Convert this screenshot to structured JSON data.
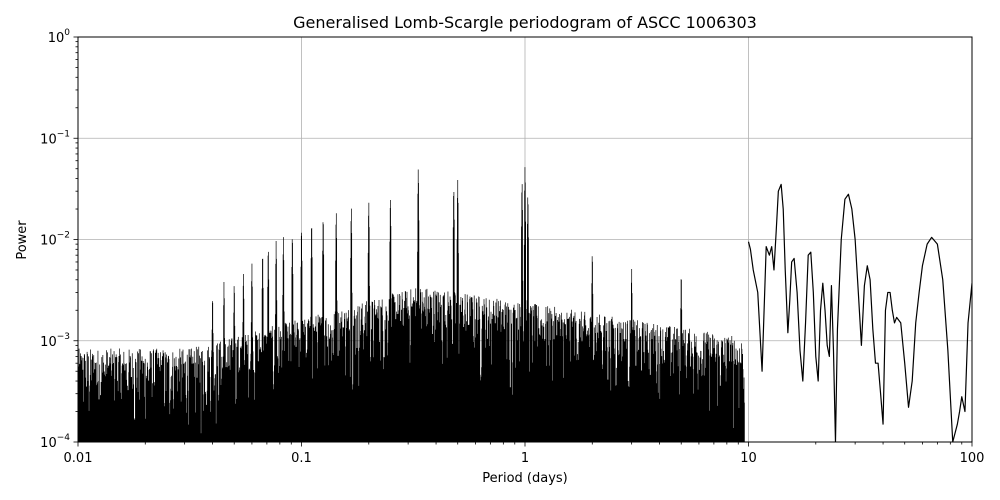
{
  "chart_data": {
    "type": "line",
    "title": "Generalised Lomb-Scargle periodogram of ASCC 1006303",
    "xlabel": "Period (days)",
    "ylabel": "Power",
    "xscale": "log",
    "yscale": "log",
    "xlim": [
      0.01,
      100
    ],
    "ylim": [
      0.0001,
      1
    ],
    "grid": true,
    "x_ticks": [
      {
        "value": 0.01,
        "label": "0.01"
      },
      {
        "value": 0.1,
        "label": "0.1"
      },
      {
        "value": 1,
        "label": "1"
      },
      {
        "value": 10,
        "label": "10"
      },
      {
        "value": 100,
        "label": "100"
      }
    ],
    "y_ticks": [
      {
        "value": 0.0001,
        "mantissa": "10",
        "exponent": "−4"
      },
      {
        "value": 0.001,
        "mantissa": "10",
        "exponent": "−3"
      },
      {
        "value": 0.01,
        "mantissa": "10",
        "exponent": "−2"
      },
      {
        "value": 0.1,
        "mantissa": "10",
        "exponent": "−1"
      },
      {
        "value": 1,
        "mantissa": "10",
        "exponent": "0"
      }
    ],
    "series": [
      {
        "color": "#000000",
        "x": [
          10.0,
          10.2,
          10.5,
          11.0,
          11.5,
          12.0,
          12.4,
          12.7,
          13.0,
          13.3,
          13.6,
          14.0,
          14.3,
          14.6,
          15.0,
          15.3,
          15.6,
          16.0,
          16.5,
          17.0,
          17.5,
          18.0,
          18.5,
          19.0,
          19.5,
          20.0,
          20.5,
          21.0,
          21.5,
          22.0,
          22.5,
          23.0,
          23.5,
          24.0,
          24.5,
          25.0,
          26.0,
          27.0,
          28.0,
          29.0,
          30.0,
          31.0,
          32.0,
          33.0,
          34.0,
          35.0,
          36.0,
          37.0,
          38.0,
          39.0,
          40.0,
          41.0,
          42.0,
          43.0,
          44.0,
          45.0,
          46.0,
          48.0,
          50.0,
          52.0,
          54.0,
          56.0,
          58.0,
          60.0,
          63.0,
          66.0,
          70.0,
          74.0,
          78.0,
          82.0,
          86.0,
          88.0,
          90.0,
          93.0,
          96.0,
          100.0
        ],
        "y": [
          0.0095,
          0.008,
          0.005,
          0.003,
          0.0005,
          0.0085,
          0.007,
          0.0085,
          0.005,
          0.012,
          0.03,
          0.035,
          0.02,
          0.005,
          0.0012,
          0.0025,
          0.006,
          0.0065,
          0.003,
          0.0008,
          0.0004,
          0.0015,
          0.007,
          0.0075,
          0.003,
          0.0007,
          0.0004,
          0.002,
          0.0037,
          0.002,
          0.0009,
          0.0007,
          0.0035,
          0.0008,
          0.0001,
          0.0013,
          0.01,
          0.025,
          0.028,
          0.02,
          0.01,
          0.003,
          0.0009,
          0.0035,
          0.0055,
          0.004,
          0.0013,
          0.0006,
          0.0006,
          0.0003,
          0.00015,
          0.002,
          0.003,
          0.003,
          0.002,
          0.0015,
          0.0017,
          0.0015,
          0.0006,
          0.00022,
          0.0004,
          0.0015,
          0.003,
          0.0055,
          0.009,
          0.0105,
          0.009,
          0.004,
          0.0008,
          0.0001,
          0.00015,
          0.0002,
          0.00028,
          0.0002,
          0.0015,
          0.0037
        ]
      }
    ]
  }
}
